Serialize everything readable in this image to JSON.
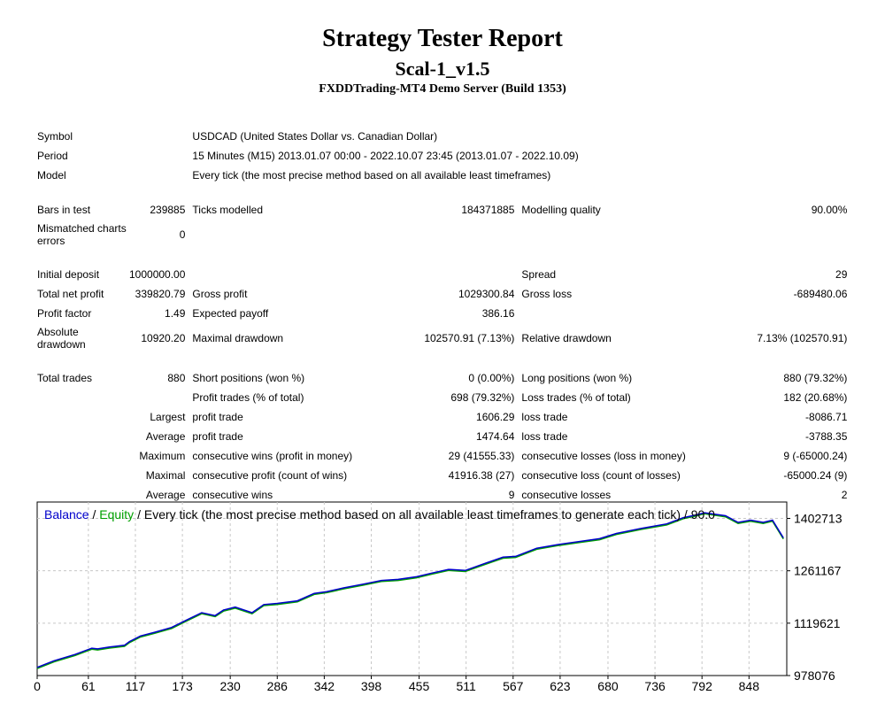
{
  "header": {
    "title": "Strategy Tester Report",
    "ea_name": "Scal-1_v1.5",
    "server": "FXDDTrading-MT4 Demo Server (Build 1353)"
  },
  "info": {
    "symbol_label": "Symbol",
    "symbol": "USDCAD (United States Dollar vs. Canadian Dollar)",
    "period_label": "Period",
    "period": "15 Minutes (M15) 2013.01.07 00:00 - 2022.10.07 23:45 (2013.01.07 - 2022.10.09)",
    "model_label": "Model",
    "model": "Every tick (the most precise method based on all available least timeframes)"
  },
  "stats": {
    "bars_label": "Bars in test",
    "bars": "239885",
    "ticks_label": "Ticks modelled",
    "ticks": "184371885",
    "quality_label": "Modelling quality",
    "quality": "90.00%",
    "mismatch_label": "Mismatched charts errors",
    "mismatch": "0",
    "deposit_label": "Initial deposit",
    "deposit": "1000000.00",
    "spread_label": "Spread",
    "spread": "29",
    "netprofit_label": "Total net profit",
    "netprofit": "339820.79",
    "grossprofit_label": "Gross profit",
    "grossprofit": "1029300.84",
    "grossloss_label": "Gross loss",
    "grossloss": "-689480.06",
    "pf_label": "Profit factor",
    "pf": "1.49",
    "payoff_label": "Expected payoff",
    "payoff": "386.16",
    "absdd_label": "Absolute drawdown",
    "absdd": "10920.20",
    "maxdd_label": "Maximal drawdown",
    "maxdd": "102570.91 (7.13%)",
    "reldd_label": "Relative drawdown",
    "reldd": "7.13% (102570.91)",
    "trades_label": "Total trades",
    "trades": "880",
    "short_label": "Short positions (won %)",
    "short": "0 (0.00%)",
    "long_label": "Long positions (won %)",
    "long": "880 (79.32%)",
    "ptrades_label": "Profit trades (% of total)",
    "ptrades": "698 (79.32%)",
    "ltrades_label": "Loss trades (% of total)",
    "ltrades": "182 (20.68%)",
    "largest_label": "Largest",
    "largest_pt_label": "profit trade",
    "largest_pt": "1606.29",
    "largest_lt_label": "loss trade",
    "largest_lt": "-8086.71",
    "average_label": "Average",
    "avg_pt_label": "profit trade",
    "avg_pt": "1474.64",
    "avg_lt_label": "loss trade",
    "avg_lt": "-3788.35",
    "maximum_label": "Maximum",
    "max_cw_label": "consecutive wins (profit in money)",
    "max_cw": "29 (41555.33)",
    "max_cl_label": "consecutive losses (loss in money)",
    "max_cl": "9 (-65000.24)",
    "maximal_label": "Maximal",
    "mxl_cp_label": "consecutive profit (count of wins)",
    "mxl_cp": "41916.38 (27)",
    "mxl_cl_label": "consecutive loss (count of losses)",
    "mxl_cl": "-65000.24 (9)",
    "average2_label": "Average",
    "avg_cw_label": "consecutive wins",
    "avg_cw": "9",
    "avg_cl_label": "consecutive losses",
    "avg_cl": "2"
  },
  "chart_data": {
    "type": "line",
    "legend_balance": "Balance",
    "legend_sep1": " / ",
    "legend_equity": "Equity",
    "legend_rest": " / Every tick (the most precise method based on all available least timeframes to generate each tick) / 90.0",
    "colors": {
      "balance": "#0000cc",
      "equity": "#00a000",
      "grid": "#c8c8c8"
    },
    "x_ticks": [
      "0",
      "61",
      "117",
      "173",
      "230",
      "286",
      "342",
      "398",
      "455",
      "511",
      "567",
      "623",
      "680",
      "736",
      "792",
      "848"
    ],
    "x_tick_values": [
      0,
      61,
      117,
      173,
      230,
      286,
      342,
      398,
      455,
      511,
      567,
      623,
      680,
      736,
      792,
      848
    ],
    "y_ticks": [
      "978076",
      "1119621",
      "1261167",
      "1402713"
    ],
    "y_tick_values": [
      978076,
      1119621,
      1261167,
      1402713
    ],
    "xlim": [
      0,
      893
    ],
    "ylim": [
      978076,
      1447000
    ],
    "series": [
      {
        "name": "Balance",
        "x": [
          0,
          20,
          45,
          65,
          72,
          86,
          104,
          110,
          123,
          140,
          160,
          178,
          196,
          212,
          222,
          236,
          256,
          270,
          286,
          310,
          330,
          345,
          365,
          388,
          410,
          430,
          452,
          470,
          490,
          510,
          532,
          555,
          570,
          595,
          620,
          645,
          670,
          690,
          720,
          750,
          770,
          785,
          795,
          820,
          835,
          850,
          865,
          876,
          889
        ],
        "y": [
          1000000,
          1018000,
          1035000,
          1052000,
          1050000,
          1055000,
          1060000,
          1070000,
          1085000,
          1095000,
          1108000,
          1128000,
          1148000,
          1140000,
          1155000,
          1163000,
          1148000,
          1170000,
          1173000,
          1180000,
          1200000,
          1205000,
          1215000,
          1225000,
          1235000,
          1238000,
          1245000,
          1255000,
          1265000,
          1262000,
          1280000,
          1298000,
          1300000,
          1322000,
          1332000,
          1340000,
          1348000,
          1362000,
          1376000,
          1388000,
          1405000,
          1412000,
          1418000,
          1410000,
          1392000,
          1398000,
          1392000,
          1398000,
          1350000
        ]
      }
    ]
  }
}
